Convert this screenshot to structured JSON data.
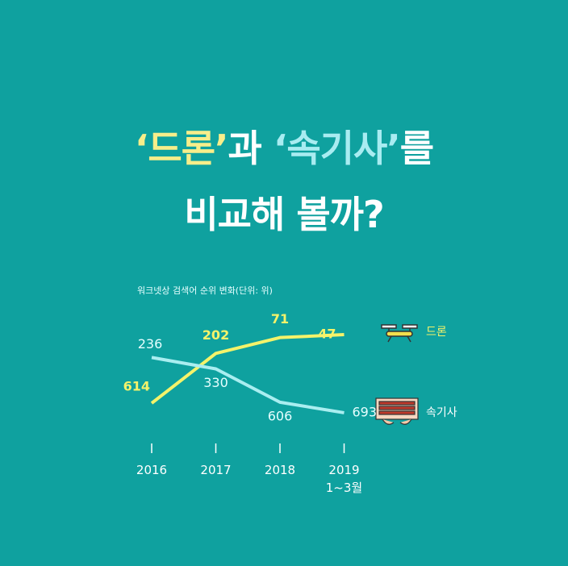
{
  "chart_data": {
    "type": "line",
    "title": [
      "‘드론’",
      "과 ",
      "‘속기사’",
      "를",
      "비교해 볼까?"
    ],
    "subtitle": "워크넷상 검색어 순위 변화(단위: 위)",
    "categories": [
      "2016",
      "2017",
      "2018",
      "2019\n1~3월"
    ],
    "ylim": [
      700,
      0
    ],
    "series": [
      {
        "name": "드론",
        "color": "#f4f36a",
        "values": [
          614,
          202,
          71,
          47
        ]
      },
      {
        "name": "속기사",
        "color": "#a9eef0",
        "values": [
          236,
          330,
          606,
          693
        ]
      }
    ]
  }
}
